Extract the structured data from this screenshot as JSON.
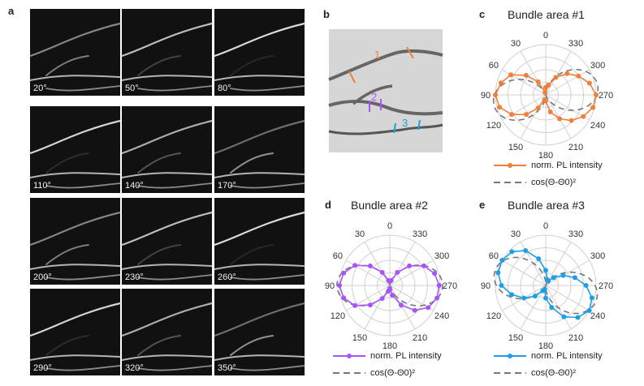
{
  "panels": {
    "a": "a",
    "b": "b",
    "c": "c",
    "d": "d",
    "e": "e"
  },
  "images": {
    "angles": [
      "20°",
      "50°",
      "80°",
      "110°",
      "140°",
      "170°",
      "200°",
      "230°",
      "260°",
      "290°",
      "320°",
      "350°"
    ]
  },
  "overview": {
    "labels": [
      "1",
      "2",
      "3"
    ],
    "label_colors": [
      "#f07f3c",
      "#a855f7",
      "#1f9ee8"
    ]
  },
  "polar_axis": {
    "angle_labels": [
      "0",
      "30",
      "60",
      "90",
      "120",
      "150",
      "180",
      "210",
      "240",
      "270",
      "300",
      "330"
    ]
  },
  "chart_data": [
    {
      "type": "polar",
      "title": "Bundle area #1",
      "color": "#f07f3c",
      "theta0_deg": 100,
      "series": [
        {
          "name": "norm. PL intensity",
          "theta_deg": [
            0,
            15,
            30,
            45,
            60,
            75,
            90,
            105,
            120,
            135,
            150,
            165,
            180,
            195,
            210,
            225,
            240,
            255,
            270,
            285,
            300,
            315,
            330,
            345
          ],
          "r": [
            0.15,
            0.05,
            0.3,
            0.55,
            0.8,
            0.92,
            1.0,
            0.95,
            0.78,
            0.55,
            0.3,
            0.1,
            0.12,
            0.35,
            0.55,
            0.72,
            0.86,
            0.97,
            1.0,
            0.9,
            0.75,
            0.6,
            0.4,
            0.2
          ]
        }
      ],
      "legend": [
        "norm. PL intensity",
        "cos(Θ-Θ0)²"
      ]
    },
    {
      "type": "polar",
      "title": "Bundle area #2",
      "color": "#a855f7",
      "theta0_deg": 90,
      "series": [
        {
          "name": "norm. PL intensity",
          "theta_deg": [
            0,
            15,
            30,
            45,
            60,
            75,
            90,
            105,
            120,
            135,
            150,
            165,
            180,
            195,
            210,
            225,
            240,
            255,
            270,
            285,
            300,
            315,
            330,
            345
          ],
          "r": [
            0.08,
            0.1,
            0.3,
            0.55,
            0.8,
            0.95,
            1.0,
            0.95,
            0.8,
            0.55,
            0.3,
            0.12,
            0.06,
            0.2,
            0.45,
            0.7,
            0.88,
            0.97,
            0.98,
            0.92,
            0.78,
            0.55,
            0.3,
            0.1
          ]
        }
      ],
      "legend": [
        "norm. PL intensity",
        "cos(Θ-Θ0)²"
      ]
    },
    {
      "type": "polar",
      "title": "Bundle area #3",
      "color": "#1f9ee8",
      "theta0_deg": 75,
      "series": [
        {
          "name": "norm. PL intensity",
          "theta_deg": [
            0,
            15,
            30,
            45,
            60,
            75,
            90,
            105,
            120,
            135,
            150,
            165,
            180,
            195,
            210,
            225,
            240,
            255,
            270,
            285,
            300,
            315,
            330,
            345
          ],
          "r": [
            0.3,
            0.55,
            0.8,
            0.95,
            1.0,
            0.98,
            0.88,
            0.7,
            0.5,
            0.3,
            0.12,
            0.08,
            0.25,
            0.45,
            0.72,
            0.9,
            1.0,
            0.95,
            0.8,
            0.6,
            0.4,
            0.22,
            0.1,
            0.12
          ]
        }
      ],
      "legend": [
        "norm. PL intensity",
        "cos(Θ-Θ0)²"
      ]
    }
  ]
}
